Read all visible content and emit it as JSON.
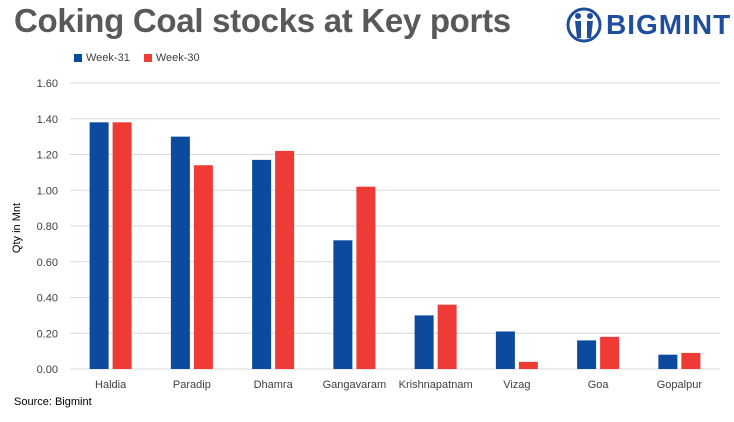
{
  "header": {
    "title": "Coking Coal stocks at Key ports",
    "brand": "BIGMINT"
  },
  "source": "Source: Bigmint",
  "colors": {
    "week31": "#0b4a9e",
    "week30": "#ee3b36",
    "grid": "#d9d9d9",
    "axis_text": "#595959"
  },
  "chart_data": {
    "type": "bar",
    "title": "Coking Coal stocks at Key ports",
    "ylabel": "Qty in Mnt",
    "xlabel": "",
    "ylim": [
      0,
      1.6
    ],
    "yticks": [
      "0.00",
      "0.20",
      "0.40",
      "0.60",
      "0.80",
      "1.00",
      "1.20",
      "1.40",
      "1.60"
    ],
    "grid": true,
    "legend": "top-left",
    "categories": [
      "Haldia",
      "Paradip",
      "Dhamra",
      "Gangavaram",
      "Krishnapatnam",
      "Vizag",
      "Goa",
      "Gopalpur"
    ],
    "series": [
      {
        "name": "Week-31",
        "values": [
          1.38,
          1.3,
          1.17,
          0.72,
          0.3,
          0.21,
          0.16,
          0.08
        ]
      },
      {
        "name": "Week-30",
        "values": [
          1.38,
          1.14,
          1.22,
          1.02,
          0.36,
          0.04,
          0.18,
          0.09
        ]
      }
    ]
  }
}
